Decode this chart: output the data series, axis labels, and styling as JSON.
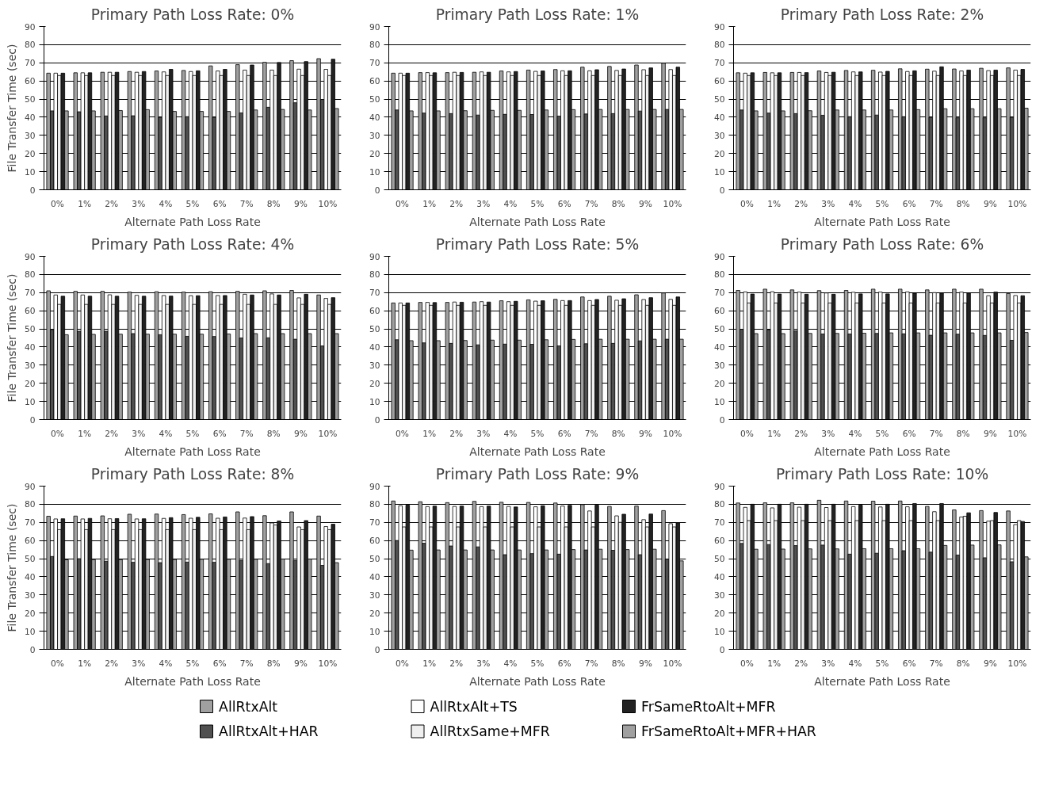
{
  "chart_data": [
    {
      "type": "bar",
      "title": "Primary Path Loss Rate: 0%",
      "xlabel": "Alternate Path Loss Rate",
      "ylabel": "File Transfer Time (sec)",
      "categories": [
        "0%",
        "1%",
        "2%",
        "3%",
        "4%",
        "5%",
        "6%",
        "7%",
        "8%",
        "9%",
        "10%"
      ],
      "ylim": [
        0,
        90
      ],
      "yticks": [
        0,
        10,
        20,
        30,
        40,
        50,
        60,
        70,
        80,
        90
      ],
      "grid": "y",
      "legend": "bottom",
      "series": [
        {
          "name": "AllRtxAlt",
          "color": "#a0a0a0",
          "values": [
            64.3,
            64.5,
            64.8,
            65.2,
            65.5,
            65.8,
            68.3,
            69,
            70.3,
            71.2,
            72.3
          ]
        },
        {
          "name": "AllRtxAlt+HAR",
          "color": "#505050",
          "values": [
            43.5,
            43,
            40.7,
            40.8,
            39.8,
            40.3,
            39.8,
            42.4,
            45.5,
            48,
            49.8
          ]
        },
        {
          "name": "AllRtxAlt+TS",
          "color": "#ffffff",
          "values": [
            64.3,
            64.5,
            64.8,
            64.8,
            65,
            65.2,
            65.5,
            66,
            66,
            66.5,
            66.4
          ]
        },
        {
          "name": "AllRtxSame+MFR",
          "color": "#efefef",
          "values": [
            63,
            63,
            63,
            63,
            63,
            63,
            63,
            63,
            63,
            63,
            63
          ]
        },
        {
          "name": "FrSameRtoAlt+MFR",
          "color": "#222222",
          "values": [
            64.3,
            64.5,
            64.8,
            65.2,
            66.4,
            65.6,
            66.4,
            68.8,
            70.2,
            70.7,
            72
          ]
        },
        {
          "name": "FrSameRtoAlt+MFR+HAR",
          "color": "#a0a0a0",
          "values": [
            43.5,
            43.5,
            43.7,
            44.2,
            43.2,
            43.2,
            43.2,
            44,
            44.3,
            44,
            44.8
          ]
        }
      ]
    },
    {
      "type": "bar",
      "title": "Primary Path Loss Rate: 1%",
      "xlabel": "Alternate Path Loss Rate",
      "categories": [
        "0%",
        "1%",
        "2%",
        "3%",
        "4%",
        "5%",
        "6%",
        "7%",
        "8%",
        "9%",
        "10%"
      ],
      "ylim": [
        0,
        90
      ],
      "yticks": [
        0,
        10,
        20,
        30,
        40,
        50,
        60,
        70,
        80,
        90
      ],
      "grid": "y",
      "series": [
        {
          "color": "#a0a0a0",
          "values": [
            64.3,
            64.6,
            64.6,
            64.8,
            65.5,
            66,
            66.3,
            67.6,
            68,
            68.8,
            69.8
          ]
        },
        {
          "color": "#505050",
          "values": [
            44,
            42.3,
            42,
            41.2,
            41.6,
            41.5,
            40.6,
            41.8,
            42,
            43.4,
            44.3
          ]
        },
        {
          "color": "#ffffff",
          "values": [
            64.3,
            64.6,
            64.8,
            65,
            65,
            65.3,
            65.6,
            65.6,
            65.8,
            66.2,
            66.3
          ]
        },
        {
          "color": "#efefef",
          "values": [
            63,
            63,
            63,
            63,
            63,
            63,
            63,
            63,
            63,
            63,
            63
          ]
        },
        {
          "color": "#222222",
          "values": [
            64.3,
            64.5,
            64.7,
            64.8,
            65.2,
            65.5,
            65.6,
            66.2,
            66.6,
            67.2,
            67.6
          ]
        },
        {
          "color": "#a0a0a0",
          "values": [
            43.5,
            43.5,
            43.6,
            43.8,
            43.8,
            44,
            44.2,
            44.3,
            44.3,
            44.3,
            44.3
          ]
        }
      ]
    },
    {
      "type": "bar",
      "title": "Primary Path Loss Rate: 2%",
      "xlabel": "Alternate Path Loss Rate",
      "categories": [
        "0%",
        "1%",
        "2%",
        "3%",
        "4%",
        "5%",
        "6%",
        "7%",
        "8%",
        "9%",
        "10%"
      ],
      "ylim": [
        0,
        90
      ],
      "yticks": [
        0,
        10,
        20,
        30,
        40,
        50,
        60,
        70,
        80,
        90
      ],
      "grid": "y",
      "series": [
        {
          "color": "#a0a0a0",
          "values": [
            64.5,
            64.7,
            64.7,
            65.5,
            65.8,
            65.9,
            66.7,
            66.5,
            66.6,
            67,
            67.2
          ]
        },
        {
          "color": "#505050",
          "values": [
            44,
            42.3,
            42,
            41.1,
            40.3,
            41.2,
            40.3,
            40,
            39.7,
            39.7,
            40
          ]
        },
        {
          "color": "#ffffff",
          "values": [
            64.3,
            64.5,
            64.7,
            64.7,
            65,
            64.9,
            65.2,
            65.4,
            65.5,
            65.7,
            66
          ]
        },
        {
          "color": "#efefef",
          "values": [
            63,
            63,
            63,
            63,
            63,
            63,
            63,
            63,
            63,
            63,
            63
          ]
        },
        {
          "color": "#222222",
          "values": [
            64.5,
            64.5,
            64.6,
            64.8,
            65,
            65.3,
            65.6,
            67.8,
            66,
            66,
            66.4
          ]
        },
        {
          "color": "#a0a0a0",
          "values": [
            43.5,
            43.5,
            43.6,
            44,
            44,
            44,
            44.2,
            44.7,
            44.7,
            44.7,
            45
          ]
        }
      ]
    },
    {
      "type": "bar",
      "title": "Primary Path Loss Rate: 4%",
      "xlabel": "Alternate Path Loss Rate",
      "ylabel": "File Transfer Time (sec)",
      "categories": [
        "0%",
        "1%",
        "2%",
        "3%",
        "4%",
        "5%",
        "6%",
        "7%",
        "8%",
        "9%",
        "10%"
      ],
      "ylim": [
        0,
        90
      ],
      "yticks": [
        0,
        10,
        20,
        30,
        40,
        50,
        60,
        70,
        80,
        90
      ],
      "grid": "y",
      "series": [
        {
          "color": "#a0a0a0",
          "values": [
            71,
            70.7,
            70.7,
            70.3,
            70.5,
            70.3,
            70.5,
            70.7,
            71,
            71.2,
            68.7
          ]
        },
        {
          "color": "#505050",
          "values": [
            49.3,
            48.7,
            48.7,
            47.4,
            46.8,
            45.9,
            45.8,
            45,
            45.1,
            44.3,
            40.6
          ]
        },
        {
          "color": "#ffffff",
          "values": [
            68.7,
            68.7,
            68.8,
            68.5,
            68.4,
            68.3,
            68.4,
            69.1,
            69.3,
            67.1,
            66.8
          ]
        },
        {
          "color": "#efefef",
          "values": [
            63.5,
            63.5,
            63.5,
            63.5,
            63.5,
            63.5,
            63.5,
            63.5,
            63.5,
            63.5,
            63.5
          ]
        },
        {
          "color": "#222222",
          "values": [
            68,
            68,
            68,
            68,
            68.1,
            68.3,
            68.4,
            68.7,
            68.7,
            69.1,
            67.2
          ]
        },
        {
          "color": "#a0a0a0",
          "values": [
            46.8,
            47,
            47.1,
            47.1,
            47.1,
            47.1,
            47.2,
            47.4,
            47.4,
            47.4,
            47.4
          ]
        }
      ]
    },
    {
      "type": "bar",
      "title": "Primary Path Loss Rate: 5%",
      "xlabel": "Alternate Path Loss Rate",
      "categories": [
        "0%",
        "1%",
        "2%",
        "3%",
        "4%",
        "5%",
        "6%",
        "7%",
        "8%",
        "9%",
        "10%"
      ],
      "ylim": [
        0,
        90
      ],
      "yticks": [
        0,
        10,
        20,
        30,
        40,
        50,
        60,
        70,
        80,
        90
      ],
      "grid": "y",
      "series": [
        {
          "color": "#a0a0a0",
          "values": [
            64.3,
            64.6,
            64.6,
            64.8,
            65.5,
            66,
            66.3,
            67.6,
            68,
            68.8,
            69.8
          ]
        },
        {
          "color": "#505050",
          "values": [
            44,
            42.3,
            42,
            41.2,
            41.6,
            41.5,
            40.6,
            41.8,
            42,
            43.4,
            44.3
          ]
        },
        {
          "color": "#ffffff",
          "values": [
            64.3,
            64.6,
            64.8,
            65,
            65,
            65.3,
            65.6,
            65.6,
            65.8,
            66.2,
            66.3
          ]
        },
        {
          "color": "#efefef",
          "values": [
            63,
            63,
            63,
            63,
            63,
            63,
            63,
            63,
            63,
            63,
            63
          ]
        },
        {
          "color": "#222222",
          "values": [
            64.3,
            64.5,
            64.7,
            64.8,
            65.2,
            65.5,
            65.6,
            66.2,
            66.6,
            67.2,
            67.6
          ]
        },
        {
          "color": "#a0a0a0",
          "values": [
            43.5,
            43.5,
            43.6,
            43.8,
            43.8,
            44,
            44.2,
            44.3,
            44.3,
            44.3,
            44.3
          ]
        }
      ]
    },
    {
      "type": "bar",
      "title": "Primary Path Loss Rate: 6%",
      "xlabel": "Alternate Path Loss Rate",
      "categories": [
        "0%",
        "1%",
        "2%",
        "3%",
        "4%",
        "5%",
        "6%",
        "7%",
        "8%",
        "9%",
        "10%"
      ],
      "ylim": [
        0,
        90
      ],
      "yticks": [
        0,
        10,
        20,
        30,
        40,
        50,
        60,
        70,
        80,
        90
      ],
      "grid": "y",
      "series": [
        {
          "color": "#a0a0a0",
          "values": [
            71.2,
            71.9,
            71.5,
            71.1,
            71.2,
            71.9,
            71.9,
            71.5,
            71.9,
            71.9,
            69.5
          ]
        },
        {
          "color": "#505050",
          "values": [
            49.8,
            49.4,
            48.9,
            47.2,
            47.2,
            47.5,
            47.3,
            46.5,
            47.1,
            46.4,
            43.7
          ]
        },
        {
          "color": "#ffffff",
          "values": [
            70.4,
            70.5,
            70.3,
            69.8,
            70.2,
            70.3,
            70.4,
            70,
            70.3,
            68.3,
            68.4
          ]
        },
        {
          "color": "#efefef",
          "values": [
            64.3,
            64.3,
            64.3,
            64.3,
            64.3,
            64.3,
            64.3,
            64.3,
            64.3,
            64.3,
            64.3
          ]
        },
        {
          "color": "#222222",
          "values": [
            69.2,
            69.2,
            69.1,
            69.1,
            69.3,
            69.3,
            69.7,
            69.8,
            69.8,
            70.3,
            68.3
          ]
        },
        {
          "color": "#a0a0a0",
          "values": [
            47.4,
            47.4,
            47.5,
            47.5,
            47.6,
            47.8,
            47.8,
            47.8,
            47.8,
            47.8,
            48
          ]
        }
      ]
    },
    {
      "type": "bar",
      "title": "Primary Path Loss Rate: 8%",
      "xlabel": "Alternate Path Loss Rate",
      "ylabel": "File Transfer Time (sec)",
      "categories": [
        "0%",
        "1%",
        "2%",
        "3%",
        "4%",
        "5%",
        "6%",
        "7%",
        "8%",
        "9%",
        "10%"
      ],
      "ylim": [
        0,
        90
      ],
      "yticks": [
        0,
        10,
        20,
        30,
        40,
        50,
        60,
        70,
        80,
        90
      ],
      "grid": "y",
      "series": [
        {
          "color": "#a0a0a0",
          "values": [
            73.4,
            73.5,
            73.6,
            74.5,
            74.6,
            74.3,
            74.7,
            75.8,
            73.7,
            75.8,
            73.5
          ]
        },
        {
          "color": "#505050",
          "values": [
            51.2,
            50,
            48.6,
            48,
            47.8,
            48.1,
            48,
            49,
            47.3,
            49,
            46.3
          ]
        },
        {
          "color": "#ffffff",
          "values": [
            71.9,
            71.9,
            72,
            71.9,
            72.2,
            72.3,
            72.3,
            72.4,
            69.7,
            67.5,
            67.7
          ]
        },
        {
          "color": "#efefef",
          "values": [
            66,
            66,
            66,
            66,
            66,
            66,
            66,
            66,
            68.6,
            66,
            66
          ]
        },
        {
          "color": "#222222",
          "values": [
            72,
            72.2,
            72.1,
            72,
            72.6,
            72.8,
            73,
            73.2,
            70.8,
            71,
            69
          ]
        },
        {
          "color": "#a0a0a0",
          "values": [
            49.4,
            49.5,
            49.5,
            49.6,
            49.6,
            49.7,
            49.7,
            49.7,
            49.8,
            49.8,
            47.8
          ]
        }
      ]
    },
    {
      "type": "bar",
      "title": "Primary Path Loss Rate: 9%",
      "xlabel": "Alternate Path Loss Rate",
      "categories": [
        "0%",
        "1%",
        "2%",
        "3%",
        "4%",
        "5%",
        "6%",
        "7%",
        "8%",
        "9%",
        "10%"
      ],
      "ylim": [
        0,
        90
      ],
      "yticks": [
        0,
        10,
        20,
        30,
        40,
        50,
        60,
        70,
        80,
        90
      ],
      "grid": "y",
      "series": [
        {
          "color": "#a0a0a0",
          "values": [
            81.8,
            81.4,
            80.9,
            81.6,
            81.1,
            81,
            80.7,
            79.8,
            78.8,
            79,
            76.5
          ]
        },
        {
          "color": "#505050",
          "values": [
            60,
            58.5,
            57,
            56.5,
            52.2,
            52.8,
            52.5,
            54.8,
            54.6,
            52.2,
            49.8
          ]
        },
        {
          "color": "#ffffff",
          "values": [
            79.2,
            78.7,
            78.8,
            78.7,
            78.8,
            78.6,
            79,
            76.3,
            73.6,
            71.5,
            69.3
          ]
        },
        {
          "color": "#efefef",
          "values": [
            67.5,
            67.5,
            67.5,
            67.5,
            67.5,
            67.5,
            67.5,
            67.5,
            70,
            67.5,
            67.5
          ]
        },
        {
          "color": "#222222",
          "values": [
            79.5,
            79,
            79,
            79,
            78.5,
            79.2,
            79.4,
            79.5,
            74.5,
            74.6,
            69.8
          ]
        },
        {
          "color": "#a0a0a0",
          "values": [
            54.7,
            54.8,
            54.8,
            54.8,
            54.8,
            54.8,
            55,
            55.2,
            55,
            55.2,
            48.8
          ]
        }
      ]
    },
    {
      "type": "bar",
      "title": "Primary Path Loss Rate: 10%",
      "xlabel": "Alternate Path Loss Rate",
      "categories": [
        "0%",
        "1%",
        "2%",
        "3%",
        "4%",
        "5%",
        "6%",
        "7%",
        "8%",
        "9%",
        "10%"
      ],
      "ylim": [
        0,
        90
      ],
      "yticks": [
        0,
        10,
        20,
        30,
        40,
        50,
        60,
        70,
        80,
        90
      ],
      "grid": "y",
      "series": [
        {
          "color": "#a0a0a0",
          "values": [
            80.7,
            80.8,
            80.8,
            82.2,
            81.8,
            81.7,
            81.8,
            78.8,
            76.9,
            76.5,
            76.3
          ]
        },
        {
          "color": "#505050",
          "values": [
            58.4,
            57.8,
            57.2,
            57.5,
            52.5,
            53,
            54.4,
            53.6,
            52,
            50.5,
            48.3
          ]
        },
        {
          "color": "#ffffff",
          "values": [
            78.3,
            78,
            78.4,
            78.2,
            78.7,
            78.5,
            78.6,
            75.9,
            73,
            70.7,
            68.8
          ]
        },
        {
          "color": "#efefef",
          "values": [
            71,
            71,
            71,
            71,
            71,
            71,
            71,
            71,
            73.4,
            71,
            71
          ]
        },
        {
          "color": "#222222",
          "values": [
            80,
            80,
            80,
            80,
            79.5,
            80,
            80.4,
            80.4,
            75.3,
            75.5,
            70.5
          ]
        },
        {
          "color": "#a0a0a0",
          "values": [
            55.2,
            55.3,
            55.4,
            55.4,
            55.5,
            55.5,
            55.5,
            57.3,
            57.5,
            57.6,
            51
          ]
        }
      ]
    }
  ]
}
